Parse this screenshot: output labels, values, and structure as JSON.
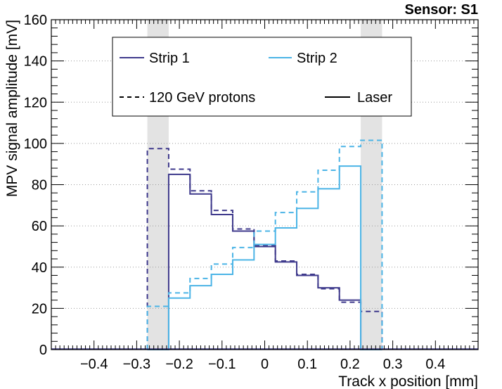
{
  "chart_data": {
    "type": "line",
    "title": "Sensor: S1",
    "xlabel": "Track x position [mm]",
    "ylabel": "MPV signal amplitude [mV]",
    "xlim": [
      -0.5,
      0.5
    ],
    "ylim": [
      0,
      160
    ],
    "x_ticks": [
      -0.4,
      -0.3,
      -0.2,
      -0.1,
      0,
      0.1,
      0.2,
      0.3,
      0.4
    ],
    "x_tick_labels": [
      "−0.4",
      "−0.3",
      "−0.2",
      "−0.1",
      "0",
      "0.1",
      "0.2",
      "0.3",
      "0.4"
    ],
    "y_ticks": [
      0,
      20,
      40,
      60,
      80,
      100,
      120,
      140,
      160
    ],
    "y_tick_labels": [
      "0",
      "20",
      "40",
      "60",
      "80",
      "100",
      "120",
      "140",
      "160"
    ],
    "grid": true,
    "shaded_regions": [
      {
        "x0": -0.275,
        "x1": -0.225,
        "color": "#e3e3e3"
      },
      {
        "x0": 0.225,
        "x1": 0.275,
        "color": "#e3e3e3"
      }
    ],
    "bin_edges": [
      -0.275,
      -0.225,
      -0.175,
      -0.125,
      -0.075,
      -0.025,
      0.025,
      0.075,
      0.125,
      0.175,
      0.225,
      0.275
    ],
    "series": [
      {
        "name": "Strip 1 - 120 GeV protons",
        "strip": "Strip 1",
        "source": "120 GeV protons",
        "color": "#3f3a8c",
        "dashed": true,
        "values": [
          97.5,
          87.5,
          77,
          67.5,
          58.5,
          50.5,
          43,
          36.5,
          29.5,
          23,
          18.5
        ]
      },
      {
        "name": "Strip 1 - Laser",
        "strip": "Strip 1",
        "source": "Laser",
        "color": "#3f3a8c",
        "dashed": false,
        "values": [
          0,
          85,
          75.5,
          65.5,
          57.5,
          50,
          42.5,
          36,
          30,
          24,
          0
        ]
      },
      {
        "name": "Strip 2 - 120 GeV protons",
        "strip": "Strip 2",
        "source": "120 GeV protons",
        "color": "#4bb4e6",
        "dashed": true,
        "values": [
          21,
          27.5,
          34.5,
          41.5,
          49.5,
          57.5,
          66.5,
          76.5,
          87,
          98.5,
          101.5
        ]
      },
      {
        "name": "Strip 2 - Laser",
        "strip": "Strip 2",
        "source": "Laser",
        "color": "#4bb4e6",
        "dashed": false,
        "values": [
          0,
          25,
          31,
          36.5,
          43.5,
          51,
          59,
          68.5,
          78,
          89,
          0
        ]
      }
    ],
    "legend": {
      "position": "top-center",
      "entries": [
        {
          "label": "Strip 1",
          "color": "#3f3a8c",
          "style": "solid"
        },
        {
          "label": "Strip 2",
          "color": "#4bb4e6",
          "style": "solid"
        },
        {
          "label": "120 GeV protons",
          "color": "#000000",
          "style": "dashed"
        },
        {
          "label": "Laser",
          "color": "#000000",
          "style": "solid"
        }
      ]
    }
  }
}
